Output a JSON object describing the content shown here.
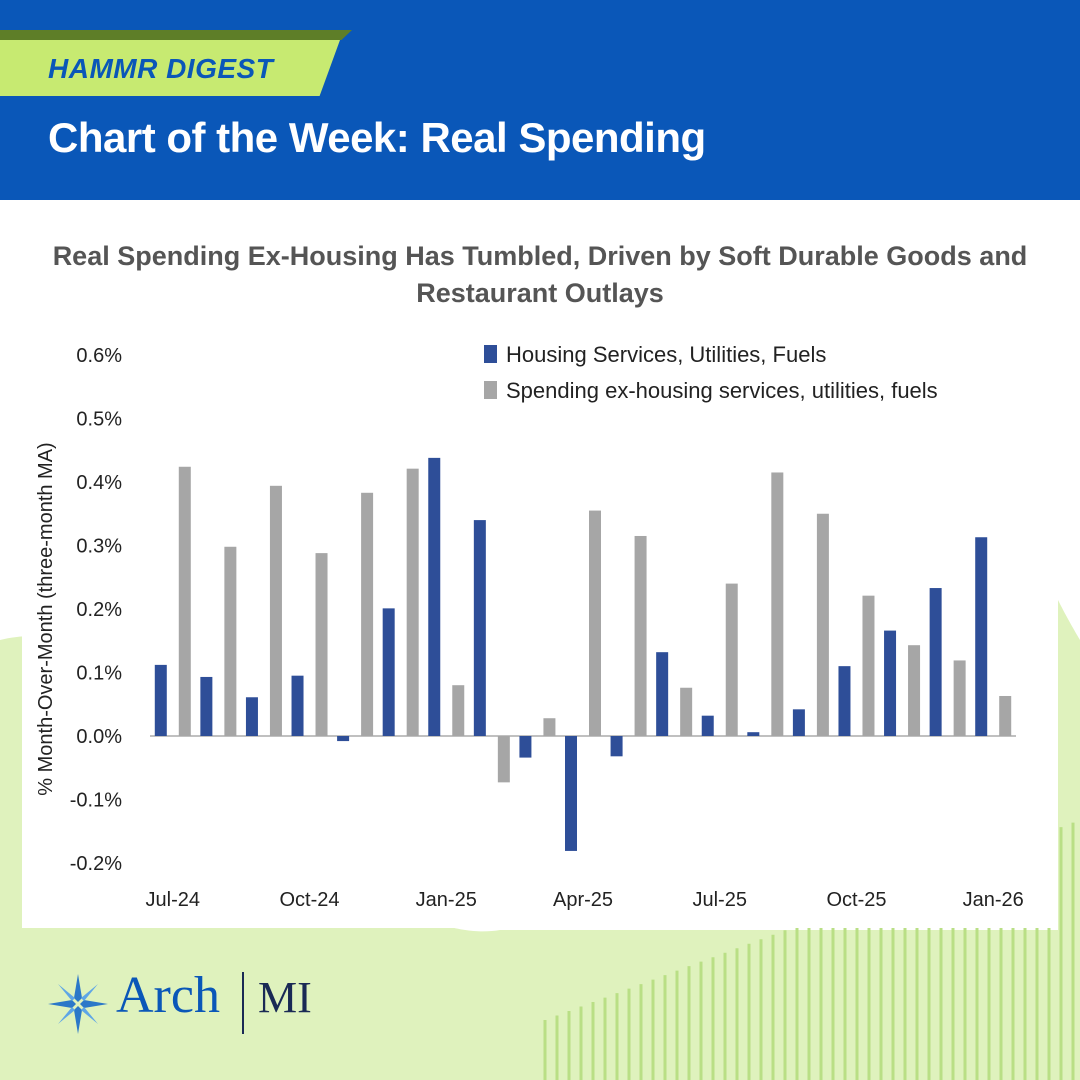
{
  "header": {
    "tag": "HAMMR DIGEST",
    "title": "Chart of the Week: Real Spending"
  },
  "brand": {
    "name": "Arch",
    "suffix": "MI",
    "colors": {
      "blue": "#0a57b8",
      "lime": "#c7ea71",
      "green_bg": "#d9f0b3",
      "navy": "#1a2a55"
    }
  },
  "chart_data": {
    "type": "bar",
    "title": "Real Spending Ex-Housing Has Tumbled, Driven by Soft Durable Goods and Restaurant Outlays",
    "ylabel": "% Month-Over-Month (three-month MA)",
    "xlabel": "",
    "ylim": [
      -0.2,
      0.6
    ],
    "yticks": [
      0.6,
      0.5,
      0.4,
      0.3,
      0.2,
      0.1,
      0.0,
      -0.1,
      -0.2
    ],
    "ytick_labels": [
      "0.6%",
      "0.5%",
      "0.4%",
      "0.3%",
      "0.2%",
      "0.1%",
      "0.0%",
      "-0.1%",
      "-0.2%"
    ],
    "categories": [
      "Jul-24",
      "Aug-24",
      "Sep-24",
      "Oct-24",
      "Nov-24",
      "Dec-24",
      "Jan-25",
      "Feb-25",
      "Mar-25",
      "Apr-25",
      "May-25",
      "Jun-25",
      "Jul-25",
      "Aug-25",
      "Sep-25",
      "Oct-25",
      "Nov-25",
      "Dec-25",
      "Jan-26"
    ],
    "xtick_labels": [
      "Jul-24",
      "Oct-24",
      "Jan-25",
      "Apr-25",
      "Jul-25",
      "Oct-25",
      "Jan-26"
    ],
    "xtick_indices": [
      0,
      3,
      6,
      9,
      12,
      15,
      18
    ],
    "legend_position": "top-right",
    "series": [
      {
        "name": "Housing Services, Utilities, Fuels",
        "color": "#2e4e98",
        "values": [
          0.112,
          0.093,
          0.061,
          0.095,
          -0.008,
          0.201,
          0.438,
          0.34,
          -0.034,
          -0.181,
          -0.032,
          0.132,
          0.032,
          0.006,
          0.042,
          0.11,
          0.166,
          0.233,
          0.313
        ]
      },
      {
        "name": "Spending ex-housing services, utilities, fuels",
        "color": "#a6a6a6",
        "values": [
          0.424,
          0.298,
          0.394,
          0.288,
          0.383,
          0.421,
          0.08,
          -0.073,
          0.028,
          0.355,
          0.315,
          0.076,
          0.24,
          0.415,
          0.35,
          0.221,
          0.143,
          0.119,
          0.063
        ]
      }
    ]
  }
}
